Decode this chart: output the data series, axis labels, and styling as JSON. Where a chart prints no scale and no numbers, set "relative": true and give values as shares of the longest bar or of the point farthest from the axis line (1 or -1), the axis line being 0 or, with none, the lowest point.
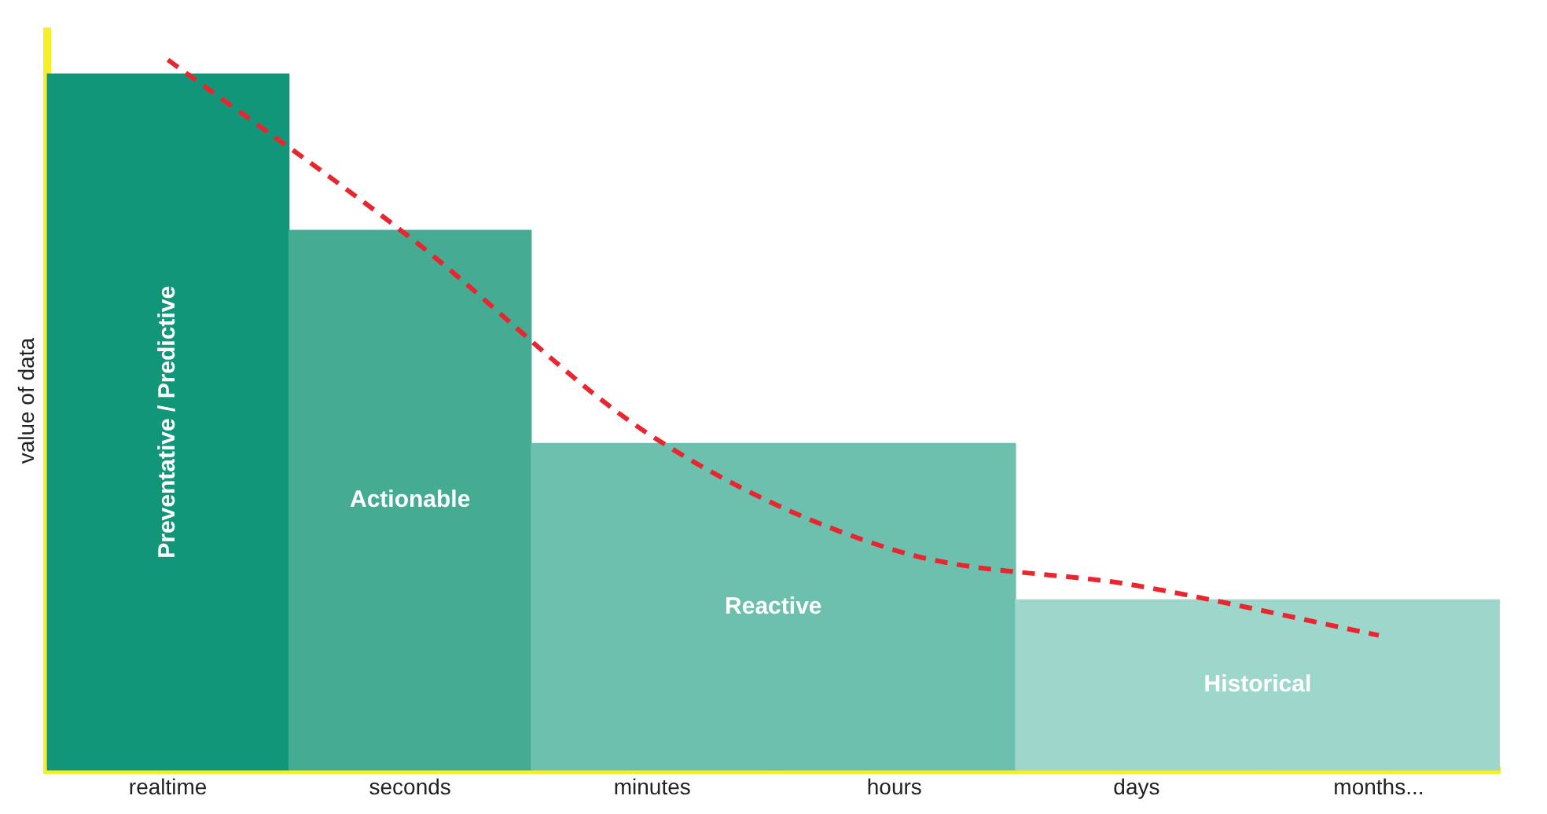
{
  "chart_data": {
    "type": "bar",
    "relative": true,
    "ylabel": "value of data",
    "categories": [
      "realtime",
      "seconds",
      "minutes",
      "hours",
      "days",
      "months..."
    ],
    "series": [
      {
        "colors": [
          "#12967a",
          "#45ab93",
          "#6cc0ad",
          "#6cc0ad",
          "#9dd6cb",
          "#9dd6cb"
        ],
        "values": [
          0.98,
          0.76,
          0.46,
          0.46,
          0.24,
          0.24
        ]
      },
      {
        "type": "line",
        "color": "#e8262f",
        "line_style": "dashed",
        "marker": "none",
        "values": [
          1,
          0.75,
          0.47,
          0.31,
          0.26,
          0.19
        ]
      }
    ],
    "annotations": [
      "Preventative / Predictive",
      "Actionable",
      "Reactive",
      "Historical"
    ],
    "grid": false,
    "legend": false
  }
}
